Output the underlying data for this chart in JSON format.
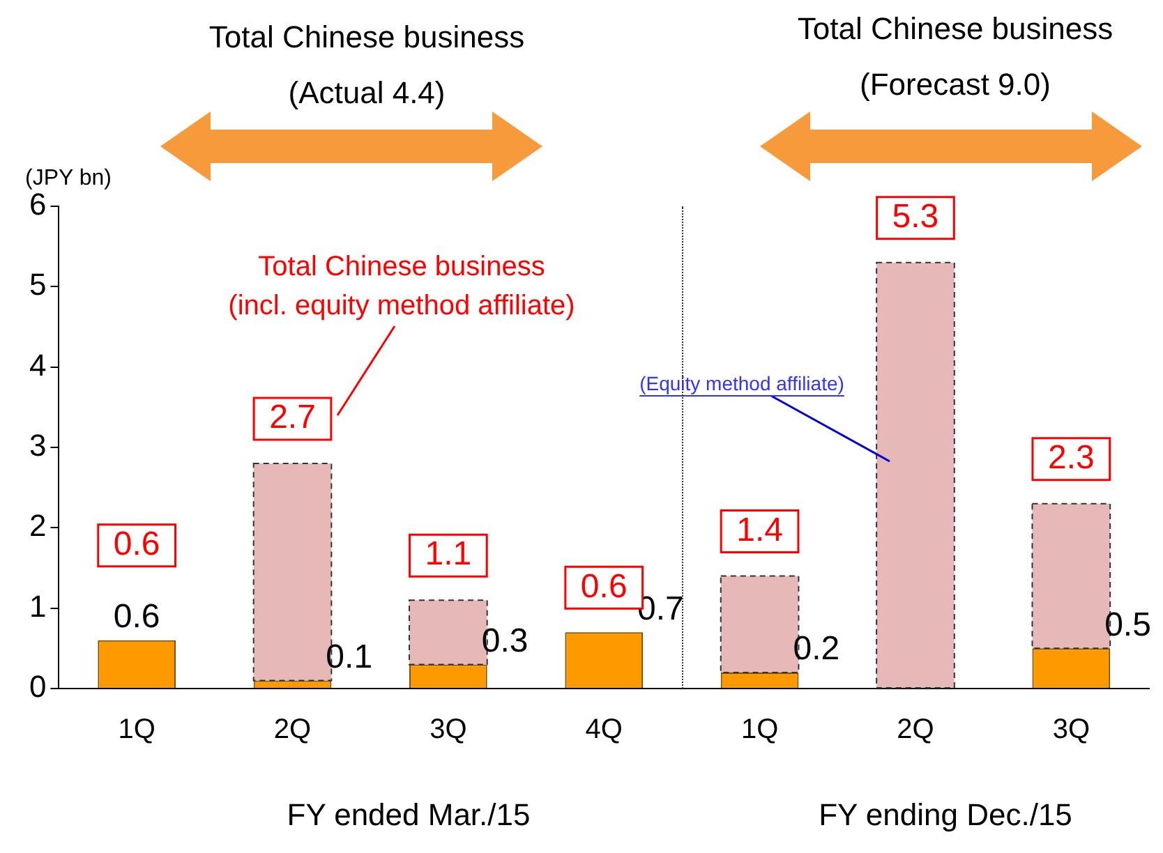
{
  "chart_data": {
    "type": "bar",
    "stacked": true,
    "ylabel": "(JPY bn)",
    "categories": [
      "1Q",
      "2Q",
      "3Q",
      "4Q",
      "1Q",
      "2Q",
      "3Q"
    ],
    "series": [
      {
        "color": "#ff9900",
        "values": [
          0.6,
          0.1,
          0.3,
          0.7,
          0.2,
          null,
          0.5
        ],
        "value_labels": [
          "0.6",
          "0.1",
          "0.3",
          "0.7",
          "0.2",
          null,
          "0.5"
        ]
      },
      {
        "color": "#e6b9b8",
        "values": [
          null,
          2.7,
          0.8,
          null,
          1.2,
          5.3,
          1.8
        ]
      }
    ],
    "totals": [
      "0.6",
      "2.7",
      "1.1",
      "0.6",
      "1.4",
      "5.3",
      "2.3"
    ],
    "ylim": [
      0,
      6
    ],
    "yticks": [
      0,
      1,
      2,
      3,
      4,
      5,
      6
    ],
    "grid": false,
    "legend": false,
    "annotations": [
      "Total Chinese business",
      "(Actual 4.4)",
      "Total Chinese business",
      "(Forecast 9.0)",
      "Total Chinese business",
      "(incl. equity method affiliate)",
      "(Equity method affiliate)",
      "FY ended Mar./15",
      "FY ending Dec./15"
    ]
  }
}
